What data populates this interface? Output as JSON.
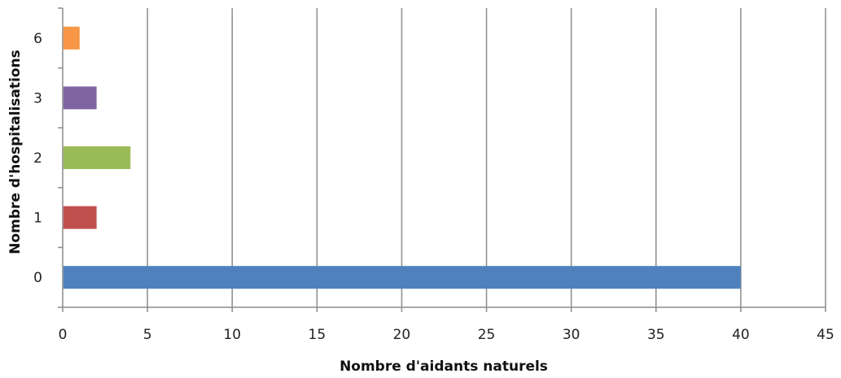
{
  "chart_data": {
    "type": "bar",
    "orientation": "horizontal",
    "xlabel": "Nombre d'aidants naturels",
    "ylabel": "Nombre d'hospitalisations",
    "xlim": [
      0,
      45
    ],
    "xticks": [
      "0",
      "5",
      "10",
      "15",
      "20",
      "25",
      "30",
      "35",
      "40",
      "45"
    ],
    "grid": true,
    "legend": "none",
    "categories": [
      "0",
      "1",
      "2",
      "3",
      "6"
    ],
    "values": [
      40,
      2,
      4,
      2,
      1
    ],
    "colors": [
      "#4F81BD",
      "#C0504D",
      "#9BBB59",
      "#8064A2",
      "#F79646"
    ]
  }
}
